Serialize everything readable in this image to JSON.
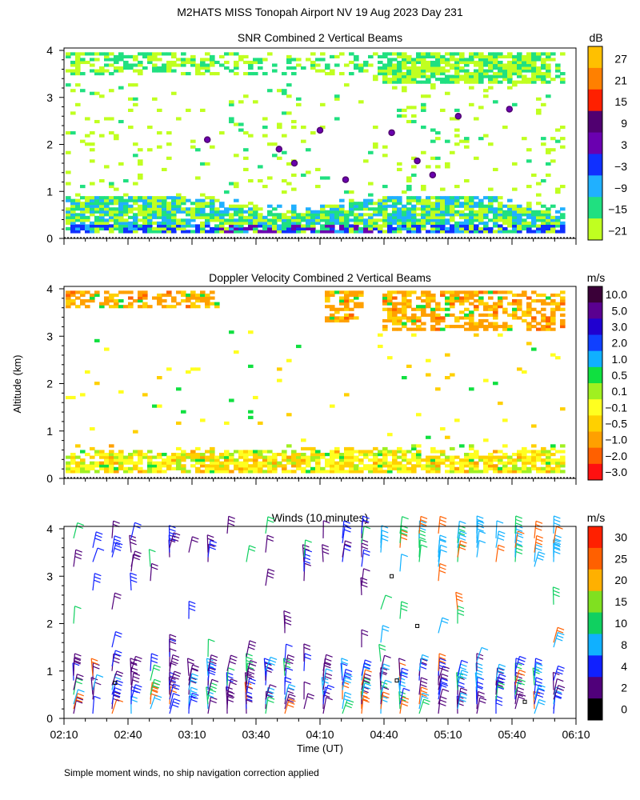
{
  "figure": {
    "title": "M2HATS MISS Tonopah Airport NV  19 Aug 2023 Day 231",
    "ylabel": "Altitude (km)",
    "xlabel": "Time (UT)",
    "footnote": "Simple moment winds, no ship navigation correction applied"
  },
  "chart_data": [
    {
      "type": "heatmap",
      "title": "SNR Combined 2 Vertical Beams",
      "unit": "dB",
      "ylim": [
        0,
        4
      ],
      "yticks": [
        "0",
        "1",
        "2",
        "3",
        "4"
      ],
      "colorbar_labels": [
        "27",
        "21",
        "15",
        "9",
        "3",
        "−3",
        "−9",
        "−15",
        "−21"
      ],
      "colorbar_colors": [
        "#ffc000",
        "#ff8000",
        "#ff2000",
        "#500070",
        "#6a00b0",
        "#1030ff",
        "#20b0ff",
        "#20e080",
        "#c0ff20"
      ],
      "features": [
        {
          "name": "upper layer",
          "altitude_km": [
            3.3,
            3.9
          ],
          "values_db": [
            -21,
            -15
          ]
        },
        {
          "name": "boundary layer",
          "altitude_km": [
            0.1,
            0.9
          ],
          "values_db": [
            -21,
            9
          ]
        },
        {
          "name": "sparse mid-level returns",
          "altitude_km": [
            0.9,
            3.3
          ],
          "values_db": [
            -21,
            -15
          ]
        }
      ]
    },
    {
      "type": "heatmap",
      "title": "Doppler Velocity Combined 2 Vertical Beams",
      "unit": "m/s",
      "ylim": [
        0,
        4
      ],
      "yticks": [
        "0",
        "1",
        "2",
        "3",
        "4"
      ],
      "colorbar_labels": [
        "10.0",
        "5.0",
        "3.0",
        "2.0",
        "1.0",
        "0.5",
        "0.1",
        "−0.1",
        "−0.5",
        "−1.0",
        "−2.0",
        "−3.0"
      ],
      "colorbar_colors": [
        "#3a0038",
        "#5a0090",
        "#2000d0",
        "#1040ff",
        "#10b0ff",
        "#10e040",
        "#a0f020",
        "#ffff20",
        "#ffd000",
        "#ffa000",
        "#ff6000",
        "#ff1010"
      ],
      "features": [
        {
          "name": "upper layer",
          "altitude_km": [
            3.0,
            3.9
          ],
          "values_ms": [
            -1.0,
            -0.5
          ]
        },
        {
          "name": "boundary layer",
          "altitude_km": [
            0.1,
            0.8
          ],
          "values_ms": [
            -0.5,
            0.1
          ]
        }
      ]
    },
    {
      "type": "scatter",
      "title": "Winds (10 minutes)",
      "unit": "m/s",
      "ylim": [
        0,
        4
      ],
      "yticks": [
        "0",
        "1",
        "2",
        "3",
        "4"
      ],
      "x": [
        "02:10",
        "02:40",
        "03:10",
        "03:40",
        "04:10",
        "04:40",
        "05:10",
        "05:40",
        "06:10"
      ],
      "colorbar_labels": [
        "30",
        "25",
        "20",
        "15",
        "10",
        "8",
        "4",
        "2",
        "0"
      ],
      "colorbar_colors": [
        "#ff2000",
        "#ff6000",
        "#ffb000",
        "#80e020",
        "#10d060",
        "#10b0ff",
        "#1020ff",
        "#50007a",
        "#000000"
      ],
      "symbol": "wind barbs"
    }
  ]
}
